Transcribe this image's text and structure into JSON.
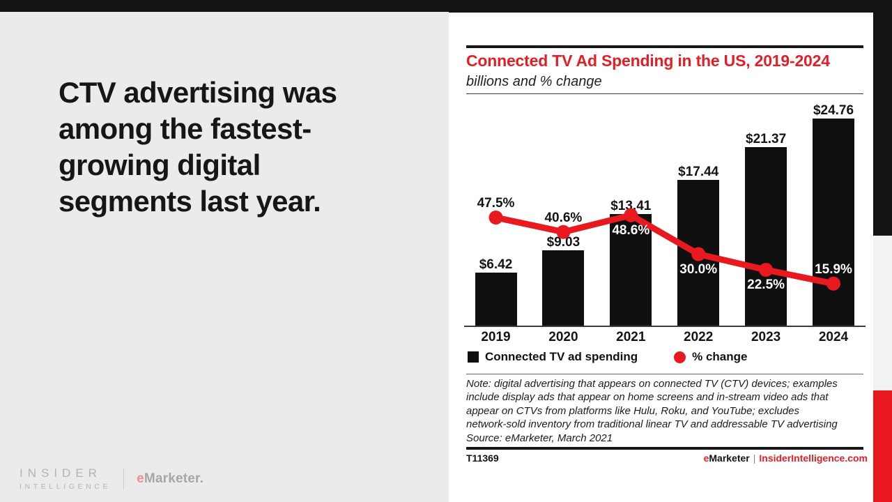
{
  "left": {
    "headline_lines": [
      "CTV advertising was",
      "among the fastest-",
      "growing digital",
      "segments last year."
    ],
    "logo": {
      "insider": "INSIDER",
      "intelligence": "INTELLIGENCE",
      "emarketer_e": "e",
      "emarketer_rest": "Marketer."
    }
  },
  "panel": {
    "note_lines": [
      "Note: digital advertising that appears on connected TV (CTV) devices; examples",
      "include display ads that appear on home screens and in-stream video ads that",
      "appear on CTVs from platforms like Hulu, Roku, and YouTube; excludes",
      "network-sold inventory from traditional linear TV and addressable TV advertising",
      "Source: eMarketer, March 2021"
    ],
    "footer": {
      "id": "T11369",
      "brand_e": "e",
      "brand_rest": "Marketer",
      "separator": "|",
      "site": "InsiderIntelligence.com"
    }
  },
  "chart_data": {
    "type": "bar+line combo",
    "title": "Connected TV Ad Spending in the US, 2019-2024",
    "subtitle": "billions and % change",
    "categories": [
      "2019",
      "2020",
      "2021",
      "2022",
      "2023",
      "2024"
    ],
    "series": [
      {
        "name": "Connected TV ad spending",
        "chart": "bar",
        "unit": "USD billions",
        "values": [
          6.42,
          9.03,
          13.41,
          17.44,
          21.37,
          24.76
        ],
        "value_labels": [
          "$6.42",
          "$9.03",
          "$13.41",
          "$17.44",
          "$21.37",
          "$24.76"
        ],
        "color": "#101010"
      },
      {
        "name": "% change",
        "chart": "line",
        "unit": "percent",
        "values": [
          47.5,
          40.6,
          48.6,
          30.0,
          22.5,
          15.9
        ],
        "value_labels": [
          "47.5%",
          "40.6%",
          "48.6%",
          "30.0%",
          "22.5%",
          "15.9%"
        ],
        "color": "#e8191f",
        "label_placement": [
          "above",
          "above",
          "below",
          "below",
          "below",
          "above"
        ],
        "label_color": [
          "black",
          "black",
          "white",
          "white",
          "white",
          "white"
        ]
      }
    ],
    "legend": [
      {
        "label": "Connected TV ad spending",
        "marker": "square",
        "color": "#101010"
      },
      {
        "label": "% change",
        "marker": "circle",
        "color": "#e8191f"
      }
    ],
    "bar_axis_range": [
      0,
      27.2
    ],
    "grid": false,
    "legend_position": "bottom"
  },
  "colors": {
    "accent_red": "#e21f26",
    "line_red": "#e8191f",
    "bar_black": "#101010",
    "left_bg": "#ebebeb",
    "top_bar": "#131313"
  }
}
